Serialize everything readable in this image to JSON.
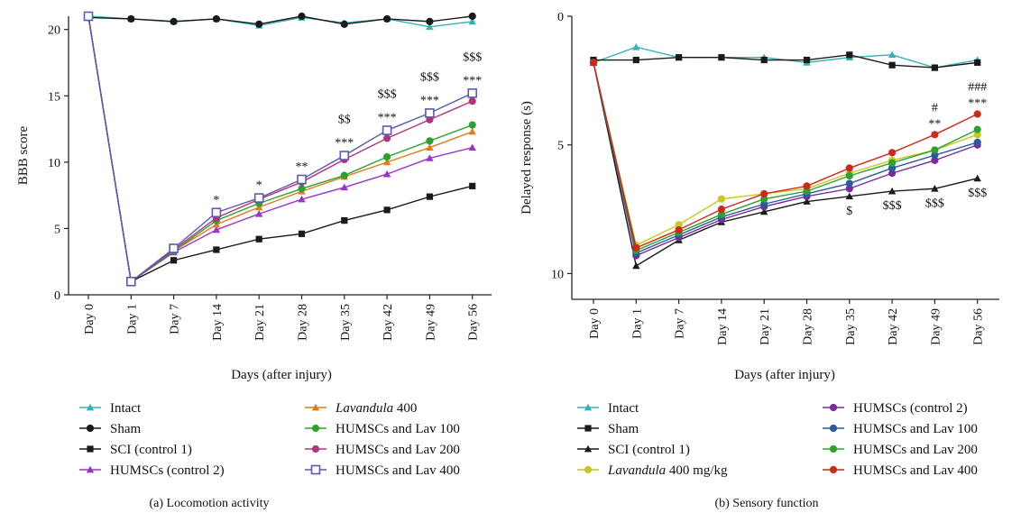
{
  "chart_data": [
    {
      "type": "line",
      "caption": "(a) Locomotion activity",
      "xlabel": "Days (after injury)",
      "ylabel": "BBB score",
      "categories": [
        "Day 0",
        "Day 1",
        "Day 7",
        "Day 14",
        "Day 21",
        "Day 28",
        "Day 35",
        "Day 42",
        "Day 49",
        "Day 56"
      ],
      "yticks": [
        "0",
        "5",
        "10",
        "15",
        "20"
      ],
      "ylim": [
        0,
        21
      ],
      "series": [
        {
          "name": "Intact",
          "color": "#33b3b3",
          "marker": "triangle",
          "values": [
            21,
            20.8,
            20.6,
            20.8,
            20.3,
            20.9,
            20.5,
            20.8,
            20.2,
            20.6
          ]
        },
        {
          "name": "Sham",
          "color": "#1a1a1a",
          "marker": "circle",
          "values": [
            20.9,
            20.8,
            20.6,
            20.8,
            20.4,
            21.0,
            20.4,
            20.8,
            20.6,
            21.0
          ]
        },
        {
          "name": "SCI (control 1)",
          "color": "#1a1a1a",
          "marker": "square",
          "values": [
            21,
            1.0,
            2.6,
            3.4,
            4.2,
            4.6,
            5.6,
            6.4,
            7.4,
            8.2
          ]
        },
        {
          "name": "HUMSCs (control 2)",
          "color": "#9933cc",
          "marker": "triangle",
          "values": [
            21,
            1.0,
            3.2,
            4.9,
            6.1,
            7.2,
            8.1,
            9.1,
            10.3,
            11.1
          ]
        },
        {
          "name": "Lavandula 400",
          "color": "#e07a1f",
          "marker": "triangle",
          "values": [
            21,
            1.0,
            3.3,
            5.3,
            6.6,
            7.8,
            8.9,
            10.0,
            11.1,
            12.3
          ]
        },
        {
          "name": "HUMSCs and Lav 100",
          "color": "#2ea12e",
          "marker": "circle",
          "values": [
            21,
            1.0,
            3.3,
            5.6,
            6.9,
            8.0,
            9.0,
            10.4,
            11.6,
            12.8
          ]
        },
        {
          "name": "HUMSCs and Lav 200",
          "color": "#b4337a",
          "marker": "circle",
          "values": [
            21,
            1.0,
            3.4,
            5.8,
            7.2,
            8.5,
            10.2,
            11.8,
            13.2,
            14.6
          ]
        },
        {
          "name": "HUMSCs and Lav 400",
          "color": "#5a5ab4",
          "marker": "open-square",
          "values": [
            21,
            1.0,
            3.5,
            6.2,
            7.3,
            8.7,
            10.5,
            12.4,
            13.7,
            15.2
          ]
        }
      ],
      "annotations": [
        {
          "x": "Day 14",
          "lines": [
            "*"
          ]
        },
        {
          "x": "Day 21",
          "lines": [
            "*"
          ]
        },
        {
          "x": "Day 28",
          "lines": [
            "**"
          ]
        },
        {
          "x": "Day 35",
          "lines": [
            "$$",
            "***"
          ]
        },
        {
          "x": "Day 42",
          "lines": [
            "$$$",
            "***"
          ]
        },
        {
          "x": "Day 49",
          "lines": [
            "$$$",
            "***"
          ]
        },
        {
          "x": "Day 56",
          "lines": [
            "$$$",
            "***"
          ]
        }
      ],
      "legend": {
        "col1": [
          "Intact",
          "Sham",
          "SCI (control 1)",
          "HUMSCs (control 2)"
        ],
        "col2": [
          {
            "italic": "Lavandula",
            "rest": " 400"
          },
          {
            "italic": "",
            "rest": "HUMSCs and Lav 100"
          },
          {
            "italic": "",
            "rest": "HUMSCs and Lav 200"
          },
          {
            "italic": "",
            "rest": "HUMSCs and Lav 400"
          }
        ]
      }
    },
    {
      "type": "line",
      "caption": "(b) Sensory function",
      "xlabel": "Days (after injury)",
      "ylabel": "Delayed response (s)",
      "categories": [
        "Day 0",
        "Day 1",
        "Day 7",
        "Day 14",
        "Day 21",
        "Day 28",
        "Day 35",
        "Day 42",
        "Day 49",
        "Day 56"
      ],
      "yticks": [
        "0",
        "5",
        "10"
      ],
      "ylim": [
        0,
        11
      ],
      "inverted_y": true,
      "series": [
        {
          "name": "Intact",
          "color": "#33b3b3",
          "marker": "triangle",
          "values": [
            1.8,
            1.2,
            1.6,
            1.6,
            1.6,
            1.8,
            1.6,
            1.5,
            2.0,
            1.7
          ]
        },
        {
          "name": "Sham",
          "color": "#1a1a1a",
          "marker": "square",
          "values": [
            1.7,
            1.7,
            1.6,
            1.6,
            1.7,
            1.7,
            1.5,
            1.9,
            2.0,
            1.8
          ]
        },
        {
          "name": "SCI (control 1)",
          "color": "#1a1a1a",
          "marker": "triangle",
          "values": [
            1.8,
            9.7,
            8.7,
            8.0,
            7.6,
            7.2,
            7.0,
            6.8,
            6.7,
            6.3
          ]
        },
        {
          "name": "Lavandula 400 mg/kg",
          "color": "#c8c820",
          "marker": "circle",
          "values": [
            1.8,
            8.9,
            8.1,
            7.1,
            6.9,
            6.7,
            6.1,
            5.6,
            5.2,
            4.6
          ]
        },
        {
          "name": "HUMSCs (control 2)",
          "color": "#7a2a9a",
          "marker": "circle",
          "values": [
            1.8,
            9.3,
            8.6,
            7.9,
            7.4,
            7.0,
            6.7,
            6.1,
            5.6,
            5.0
          ]
        },
        {
          "name": "HUMSCs and Lav 100",
          "color": "#2a5aa0",
          "marker": "circle",
          "values": [
            1.8,
            9.2,
            8.5,
            7.8,
            7.3,
            6.9,
            6.5,
            5.9,
            5.4,
            4.9
          ]
        },
        {
          "name": "HUMSCs and Lav 200",
          "color": "#2ea12e",
          "marker": "circle",
          "values": [
            1.8,
            9.1,
            8.4,
            7.7,
            7.1,
            6.8,
            6.2,
            5.7,
            5.2,
            4.4
          ]
        },
        {
          "name": "HUMSCs and Lav 400",
          "color": "#cc2a1a",
          "marker": "circle",
          "values": [
            1.8,
            9.0,
            8.3,
            7.5,
            6.9,
            6.6,
            5.9,
            5.3,
            4.6,
            3.8
          ]
        }
      ],
      "annotations_above": [
        {
          "x": "Day 49",
          "lines": [
            "#",
            "**"
          ]
        },
        {
          "x": "Day 56",
          "lines": [
            "###",
            "***"
          ]
        }
      ],
      "annotations_below": [
        {
          "x": "Day 35",
          "text": "$"
        },
        {
          "x": "Day 42",
          "text": "$$$"
        },
        {
          "x": "Day 49",
          "text": "$$$"
        },
        {
          "x": "Day 56",
          "text": "$$$"
        }
      ],
      "legend": {
        "col1": [
          {
            "italic": "",
            "rest": "Intact"
          },
          {
            "italic": "",
            "rest": "Sham"
          },
          {
            "italic": "",
            "rest": "SCI (control 1)"
          },
          {
            "italic": "Lavandula",
            "rest": " 400 mg/kg"
          }
        ],
        "col2": [
          "HUMSCs (control 2)",
          "HUMSCs and Lav 100",
          "HUMSCs and Lav 200",
          "HUMSCs and Lav 400"
        ]
      }
    }
  ]
}
